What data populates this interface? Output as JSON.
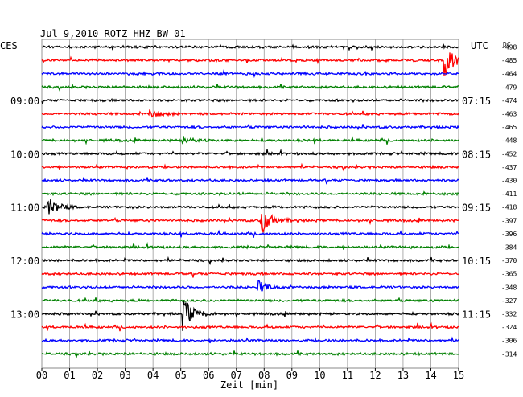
{
  "chart_data": {
    "type": "line",
    "title": "Jul 9,2010   ROTZ HHZ BW 01",
    "left_timezone": "CES",
    "right_timezone": "UTC",
    "dc_label": "DC",
    "xlabel": "Zeit [min]",
    "x_ticks": [
      "00",
      "01",
      "02",
      "03",
      "04",
      "05",
      "06",
      "07",
      "08",
      "09",
      "10",
      "11",
      "12",
      "13",
      "14",
      "15"
    ],
    "xlim": [
      0,
      15
    ],
    "grid": true,
    "trace_colors": [
      "#000000",
      "#ff0000",
      "#0000ff",
      "#008000"
    ],
    "left_hour_labels": [
      {
        "trace": 4,
        "label": "09:00"
      },
      {
        "trace": 8,
        "label": "10:00"
      },
      {
        "trace": 12,
        "label": "11:00"
      },
      {
        "trace": 16,
        "label": "12:00"
      },
      {
        "trace": 20,
        "label": "13:00"
      }
    ],
    "right_hour_labels": [
      {
        "trace": 4,
        "label": "07:15"
      },
      {
        "trace": 8,
        "label": "08:15"
      },
      {
        "trace": 12,
        "label": "09:15"
      },
      {
        "trace": 16,
        "label": "10:15"
      },
      {
        "trace": 20,
        "label": "11:15"
      }
    ],
    "dc_offsets": [
      "-498",
      "-485",
      "-464",
      "-479",
      "-474",
      "-463",
      "-465",
      "-448",
      "-452",
      "-437",
      "-430",
      "-411",
      "-418",
      "-397",
      "-396",
      "-384",
      "-370",
      "-365",
      "-348",
      "-327",
      "-332",
      "-324",
      "-306",
      "-314"
    ],
    "events": [
      {
        "trace": 1,
        "minute": 14.5,
        "amplitude": 0.9
      },
      {
        "trace": 5,
        "minute": 3.9,
        "amplitude": 0.25
      },
      {
        "trace": 7,
        "minute": 5.1,
        "amplitude": 0.22
      },
      {
        "trace": 12,
        "minute": 0.25,
        "amplitude": 0.6
      },
      {
        "trace": 13,
        "minute": 7.9,
        "amplitude": 0.9
      },
      {
        "trace": 18,
        "minute": 7.8,
        "amplitude": 0.35
      },
      {
        "trace": 20,
        "minute": 5.1,
        "amplitude": 0.95
      }
    ]
  }
}
